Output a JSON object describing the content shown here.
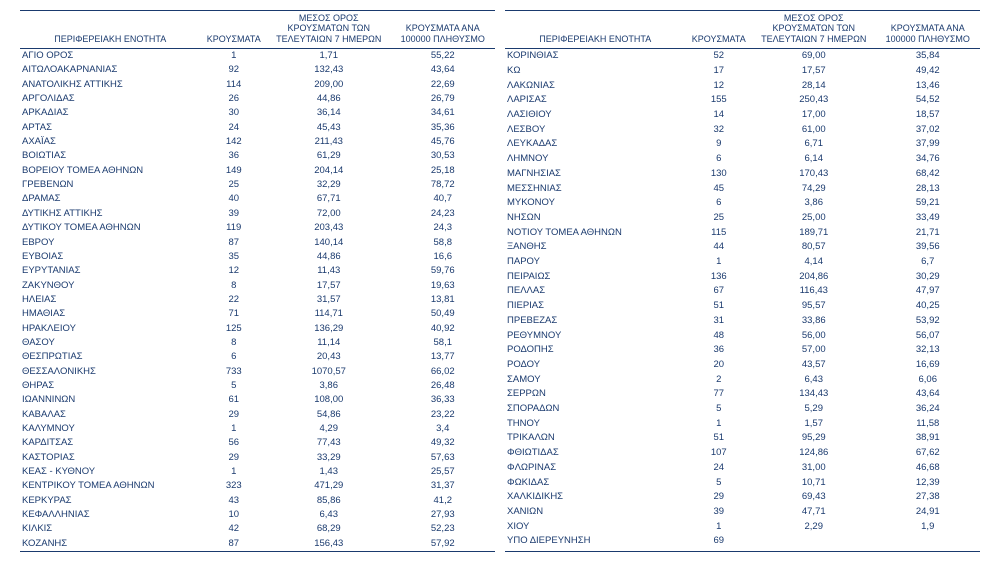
{
  "colors": {
    "text": "#1a3a6e",
    "border": "#1a3a6e",
    "background": "#ffffff"
  },
  "typography": {
    "family": "Arial, Helvetica, sans-serif",
    "header_fontsize": 9,
    "cell_fontsize": 9.5
  },
  "headers": {
    "region": "ΠΕΡΙΦΕΡΕΙΑΚΗ ΕΝΟΤΗΤΑ",
    "cases": "ΚΡΟΥΣΜΑΤΑ",
    "avg7": "ΜΕΣΟΣ ΟΡΟΣ ΚΡΟΥΣΜΑΤΩΝ ΤΩΝ ΤΕΛΕΥΤΑΙΩΝ 7 ΗΜΕΡΩΝ",
    "per100k": "ΚΡΟΥΣΜΑΤΑ ΑΝΑ 100000 ΠΛΗΘΥΣΜΟ"
  },
  "left_rows": [
    [
      "ΑΓΙΟ ΟΡΟΣ",
      "1",
      "1,71",
      "55,22"
    ],
    [
      "ΑΙΤΩΛΟΑΚΑΡΝΑΝΙΑΣ",
      "92",
      "132,43",
      "43,64"
    ],
    [
      "ΑΝΑΤΟΛΙΚΗΣ ΑΤΤΙΚΗΣ",
      "114",
      "209,00",
      "22,69"
    ],
    [
      "ΑΡΓΟΛΙΔΑΣ",
      "26",
      "44,86",
      "26,79"
    ],
    [
      "ΑΡΚΑΔΙΑΣ",
      "30",
      "36,14",
      "34,61"
    ],
    [
      "ΑΡΤΑΣ",
      "24",
      "45,43",
      "35,36"
    ],
    [
      "ΑΧΑΪΑΣ",
      "142",
      "211,43",
      "45,76"
    ],
    [
      "ΒΟΙΩΤΙΑΣ",
      "36",
      "61,29",
      "30,53"
    ],
    [
      "ΒΟΡΕΙΟΥ ΤΟΜΕΑ ΑΘΗΝΩΝ",
      "149",
      "204,14",
      "25,18"
    ],
    [
      "ΓΡΕΒΕΝΩΝ",
      "25",
      "32,29",
      "78,72"
    ],
    [
      "ΔΡΑΜΑΣ",
      "40",
      "67,71",
      "40,7"
    ],
    [
      "ΔΥΤΙΚΗΣ ΑΤΤΙΚΗΣ",
      "39",
      "72,00",
      "24,23"
    ],
    [
      "ΔΥΤΙΚΟΥ ΤΟΜΕΑ ΑΘΗΝΩΝ",
      "119",
      "203,43",
      "24,3"
    ],
    [
      "ΕΒΡΟΥ",
      "87",
      "140,14",
      "58,8"
    ],
    [
      "ΕΥΒΟΙΑΣ",
      "35",
      "44,86",
      "16,6"
    ],
    [
      "ΕΥΡΥΤΑΝΙΑΣ",
      "12",
      "11,43",
      "59,76"
    ],
    [
      "ΖΑΚΥΝΘΟΥ",
      "8",
      "17,57",
      "19,63"
    ],
    [
      "ΗΛΕΙΑΣ",
      "22",
      "31,57",
      "13,81"
    ],
    [
      "ΗΜΑΘΙΑΣ",
      "71",
      "114,71",
      "50,49"
    ],
    [
      "ΗΡΑΚΛΕΙΟΥ",
      "125",
      "136,29",
      "40,92"
    ],
    [
      "ΘΑΣΟΥ",
      "8",
      "11,14",
      "58,1"
    ],
    [
      "ΘΕΣΠΡΩΤΙΑΣ",
      "6",
      "20,43",
      "13,77"
    ],
    [
      "ΘΕΣΣΑΛΟΝΙΚΗΣ",
      "733",
      "1070,57",
      "66,02"
    ],
    [
      "ΘΗΡΑΣ",
      "5",
      "3,86",
      "26,48"
    ],
    [
      "ΙΩΑΝΝΙΝΩΝ",
      "61",
      "108,00",
      "36,33"
    ],
    [
      "ΚΑΒΑΛΑΣ",
      "29",
      "54,86",
      "23,22"
    ],
    [
      "ΚΑΛΥΜΝΟΥ",
      "1",
      "4,29",
      "3,4"
    ],
    [
      "ΚΑΡΔΙΤΣΑΣ",
      "56",
      "77,43",
      "49,32"
    ],
    [
      "ΚΑΣΤΟΡΙΑΣ",
      "29",
      "33,29",
      "57,63"
    ],
    [
      "ΚΕΑΣ - ΚΥΘΝΟΥ",
      "1",
      "1,43",
      "25,57"
    ],
    [
      "ΚΕΝΤΡΙΚΟΥ ΤΟΜΕΑ ΑΘΗΝΩΝ",
      "323",
      "471,29",
      "31,37"
    ],
    [
      "ΚΕΡΚΥΡΑΣ",
      "43",
      "85,86",
      "41,2"
    ],
    [
      "ΚΕΦΑΛΛΗΝΙΑΣ",
      "10",
      "6,43",
      "27,93"
    ],
    [
      "ΚΙΛΚΙΣ",
      "42",
      "68,29",
      "52,23"
    ],
    [
      "ΚΟΖΑΝΗΣ",
      "87",
      "156,43",
      "57,92"
    ]
  ],
  "right_rows": [
    [
      "ΚΟΡΙΝΘΙΑΣ",
      "52",
      "69,00",
      "35,84"
    ],
    [
      "ΚΩ",
      "17",
      "17,57",
      "49,42"
    ],
    [
      "ΛΑΚΩΝΙΑΣ",
      "12",
      "28,14",
      "13,46"
    ],
    [
      "ΛΑΡΙΣΑΣ",
      "155",
      "250,43",
      "54,52"
    ],
    [
      "ΛΑΣΙΘΙΟΥ",
      "14",
      "17,00",
      "18,57"
    ],
    [
      "ΛΕΣΒΟΥ",
      "32",
      "61,00",
      "37,02"
    ],
    [
      "ΛΕΥΚΑΔΑΣ",
      "9",
      "6,71",
      "37,99"
    ],
    [
      "ΛΗΜΝΟΥ",
      "6",
      "6,14",
      "34,76"
    ],
    [
      "ΜΑΓΝΗΣΙΑΣ",
      "130",
      "170,43",
      "68,42"
    ],
    [
      "ΜΕΣΣΗΝΙΑΣ",
      "45",
      "74,29",
      "28,13"
    ],
    [
      "ΜΥΚΟΝΟΥ",
      "6",
      "3,86",
      "59,21"
    ],
    [
      "ΝΗΣΩΝ",
      "25",
      "25,00",
      "33,49"
    ],
    [
      "ΝΟΤΙΟΥ ΤΟΜΕΑ ΑΘΗΝΩΝ",
      "115",
      "189,71",
      "21,71"
    ],
    [
      "ΞΑΝΘΗΣ",
      "44",
      "80,57",
      "39,56"
    ],
    [
      "ΠΑΡΟΥ",
      "1",
      "4,14",
      "6,7"
    ],
    [
      "ΠΕΙΡΑΙΩΣ",
      "136",
      "204,86",
      "30,29"
    ],
    [
      "ΠΕΛΛΑΣ",
      "67",
      "116,43",
      "47,97"
    ],
    [
      "ΠΙΕΡΙΑΣ",
      "51",
      "95,57",
      "40,25"
    ],
    [
      "ΠΡΕΒΕΖΑΣ",
      "31",
      "33,86",
      "53,92"
    ],
    [
      "ΡΕΘΥΜΝΟΥ",
      "48",
      "56,00",
      "56,07"
    ],
    [
      "ΡΟΔΟΠΗΣ",
      "36",
      "57,00",
      "32,13"
    ],
    [
      "ΡΟΔΟΥ",
      "20",
      "43,57",
      "16,69"
    ],
    [
      "ΣΑΜΟΥ",
      "2",
      "6,43",
      "6,06"
    ],
    [
      "ΣΕΡΡΩΝ",
      "77",
      "134,43",
      "43,64"
    ],
    [
      "ΣΠΟΡΑΔΩΝ",
      "5",
      "5,29",
      "36,24"
    ],
    [
      "ΤΗΝΟΥ",
      "1",
      "1,57",
      "11,58"
    ],
    [
      "ΤΡΙΚΑΛΩΝ",
      "51",
      "95,29",
      "38,91"
    ],
    [
      "ΦΘΙΩΤΙΔΑΣ",
      "107",
      "124,86",
      "67,62"
    ],
    [
      "ΦΛΩΡΙΝΑΣ",
      "24",
      "31,00",
      "46,68"
    ],
    [
      "ΦΩΚΙΔΑΣ",
      "5",
      "10,71",
      "12,39"
    ],
    [
      "ΧΑΛΚΙΔΙΚΗΣ",
      "29",
      "69,43",
      "27,38"
    ],
    [
      "ΧΑΝΙΩΝ",
      "39",
      "47,71",
      "24,91"
    ],
    [
      "ΧΙΟΥ",
      "1",
      "2,29",
      "1,9"
    ],
    [
      "ΥΠΟ ΔΙΕΡΕΥΝΗΣΗ",
      "69",
      "",
      ""
    ],
    [
      "",
      "",
      "",
      ""
    ]
  ]
}
